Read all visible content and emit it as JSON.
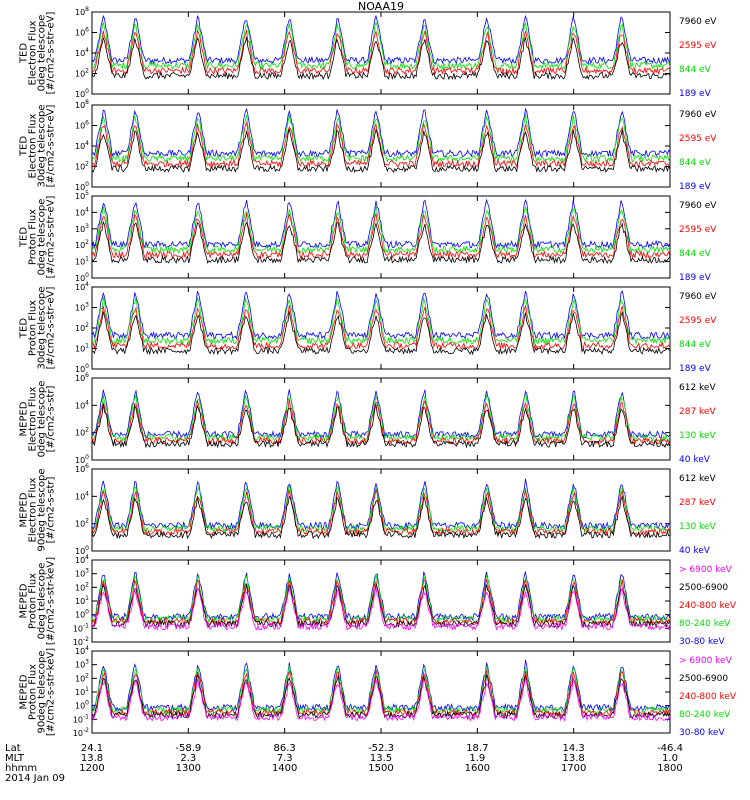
{
  "chart_data": {
    "type": "line",
    "title": "NOAA19",
    "panels": [
      {
        "ylabel": [
          "TED",
          "Electron Flux",
          "0deg telescope",
          "[#/cm2-s-str-eV]"
        ],
        "yticks": [
          "10^0",
          "10^2",
          "10^4",
          "10^6",
          "10^8"
        ],
        "ylim": [
          0,
          8
        ],
        "legend": [
          {
            "label": "7960 eV",
            "color": "#000000"
          },
          {
            "label": "2595 eV",
            "color": "#ff0000"
          },
          {
            "label": "844 eV",
            "color": "#00e000"
          },
          {
            "label": "189 eV",
            "color": "#0000ff"
          }
        ]
      },
      {
        "ylabel": [
          "TED",
          "Electron Flux",
          "30deg telescope",
          "[#/cm2-s-str-eV]"
        ],
        "yticks": [
          "10^0",
          "10^2",
          "10^4",
          "10^6",
          "10^8"
        ],
        "ylim": [
          0,
          8
        ],
        "legend": [
          {
            "label": "7960 eV",
            "color": "#000000"
          },
          {
            "label": "2595 eV",
            "color": "#ff0000"
          },
          {
            "label": "844 eV",
            "color": "#00e000"
          },
          {
            "label": "189 eV",
            "color": "#0000ff"
          }
        ]
      },
      {
        "ylabel": [
          "TED",
          "Proton Flux",
          "0deg telescope",
          "[#/cm2-s-str-eV]"
        ],
        "yticks": [
          "10^0",
          "10^1",
          "10^2",
          "10^3",
          "10^4",
          "10^5"
        ],
        "ylim": [
          0,
          5
        ],
        "legend": [
          {
            "label": "7960 eV",
            "color": "#000000"
          },
          {
            "label": "2595 eV",
            "color": "#ff0000"
          },
          {
            "label": "844 eV",
            "color": "#00e000"
          },
          {
            "label": "189 eV",
            "color": "#0000ff"
          }
        ]
      },
      {
        "ylabel": [
          "TED",
          "Proton Flux",
          "30deg telescope",
          "[#/cm2-s-str-eV]"
        ],
        "yticks": [
          "10^0",
          "10^1",
          "10^2",
          "10^3",
          "10^4"
        ],
        "ylim": [
          0,
          4
        ],
        "legend": [
          {
            "label": "7960 eV",
            "color": "#000000"
          },
          {
            "label": "2595 eV",
            "color": "#ff0000"
          },
          {
            "label": "844 eV",
            "color": "#00e000"
          },
          {
            "label": "189 eV",
            "color": "#0000ff"
          }
        ]
      },
      {
        "ylabel": [
          "MEPED",
          "Electron Flux",
          "0deg telescope",
          "[#/cm2-s-str]"
        ],
        "yticks": [
          "10^0",
          "10^2",
          "10^4",
          "10^6"
        ],
        "ylim": [
          0,
          6
        ],
        "legend": [
          {
            "label": "612 keV",
            "color": "#000000"
          },
          {
            "label": "287 keV",
            "color": "#ff0000"
          },
          {
            "label": "130 keV",
            "color": "#00e000"
          },
          {
            "label": "40 keV",
            "color": "#0000ff"
          }
        ]
      },
      {
        "ylabel": [
          "MEPED",
          "Electron Flux",
          "90deg telescope",
          "[#/cm2-s-str]"
        ],
        "yticks": [
          "10^0",
          "10^2",
          "10^4",
          "10^6"
        ],
        "ylim": [
          0,
          6
        ],
        "legend": [
          {
            "label": "612 keV",
            "color": "#000000"
          },
          {
            "label": "287 keV",
            "color": "#ff0000"
          },
          {
            "label": "130 keV",
            "color": "#00e000"
          },
          {
            "label": "40 keV",
            "color": "#0000ff"
          }
        ]
      },
      {
        "ylabel": [
          "MEPED",
          "Proton Flux",
          "0deg telescope",
          "[#/cm2-s-str-keV]"
        ],
        "yticks": [
          "10^-2",
          "10^-1",
          "10^0",
          "10^1",
          "10^2",
          "10^3",
          "10^4"
        ],
        "ylim": [
          -2,
          4
        ],
        "legend": [
          {
            "label": "> 6900 keV",
            "color": "#ff00ff"
          },
          {
            "label": "2500-6900",
            "color": "#000000"
          },
          {
            "label": "240-800 keV",
            "color": "#ff0000"
          },
          {
            "label": "80-240 keV",
            "color": "#00e000"
          },
          {
            "label": "30-80 keV",
            "color": "#0000ff"
          }
        ]
      },
      {
        "ylabel": [
          "MEPED",
          "Proton Flux",
          "90deg telescope",
          "[#/cm2-s-str-keV]"
        ],
        "yticks": [
          "10^-2",
          "10^-1",
          "10^0",
          "10^1",
          "10^2",
          "10^3",
          "10^4"
        ],
        "ylim": [
          -2,
          4
        ],
        "legend": [
          {
            "label": "> 6900 keV",
            "color": "#ff00ff"
          },
          {
            "label": "2500-6900",
            "color": "#000000"
          },
          {
            "label": "240-800 keV",
            "color": "#ff0000"
          },
          {
            "label": "80-240 keV",
            "color": "#00e000"
          },
          {
            "label": "30-80 keV",
            "color": "#0000ff"
          }
        ]
      }
    ],
    "xaxis": {
      "rows": [
        {
          "label": "Lat",
          "values": [
            "24.1",
            "-58.9",
            "86.3",
            "-52.3",
            "18.7",
            "14.3",
            "-46.4"
          ]
        },
        {
          "label": "MLT",
          "values": [
            "13.8",
            "2.3",
            "7.3",
            "13.5",
            "1.9",
            "13.8",
            "1.0"
          ]
        },
        {
          "label": "hhmm",
          "values": [
            "1200",
            "1300",
            "1400",
            "1500",
            "1600",
            "1700",
            "1800"
          ]
        }
      ],
      "date": "2014 Jan 09",
      "tick_hours": [
        12,
        13,
        14,
        15,
        16,
        17,
        18
      ]
    }
  }
}
